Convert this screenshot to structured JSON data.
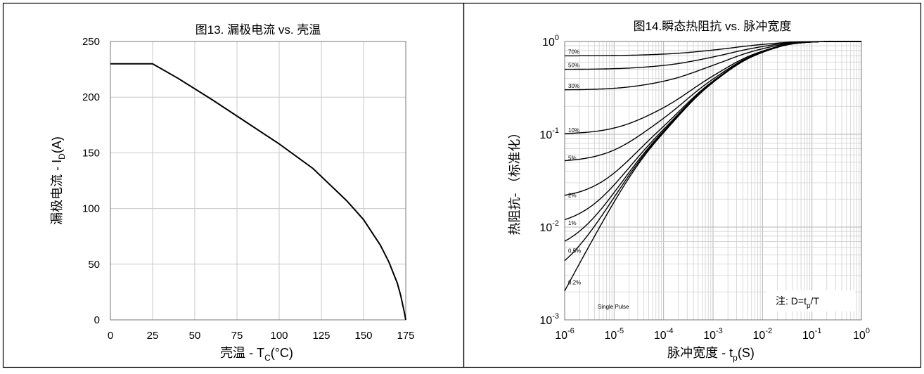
{
  "charts": [
    {
      "title": "图13. 漏极电流 vs. 壳温",
      "ylabel_main": "漏极电流 - I",
      "ylabel_sub": "D",
      "ylabel_unit": "(A)",
      "xlabel_main": "壳温  - T",
      "xlabel_sub": "C",
      "xlabel_unit": "(°C)"
    },
    {
      "title": "图14.瞬态热阻抗 vs. 脉冲宽度",
      "ylabel": "热阻抗- （标准化）",
      "xlabel_main": "脉冲宽度 - t",
      "xlabel_sub": "p",
      "xlabel_unit": "(S)",
      "note_prefix": "注:  D=t",
      "note_sub": "p",
      "note_suffix": "/T",
      "pulse_label": "Single Pulse"
    }
  ],
  "chart_data": [
    {
      "type": "line",
      "title": "图13. 漏极电流 vs. 壳温",
      "xlabel": "壳温  - TC(°C)",
      "ylabel": "漏极电流 - ID(A)",
      "xlim": [
        0,
        175
      ],
      "ylim": [
        0,
        250
      ],
      "xticks": [
        0,
        25,
        50,
        75,
        100,
        125,
        150,
        175
      ],
      "yticks": [
        0,
        50,
        100,
        150,
        200,
        250
      ],
      "grid": true,
      "series": [
        {
          "x": [
            0,
            25,
            40,
            60,
            80,
            100,
            120,
            140,
            150,
            160,
            165,
            170,
            172,
            174,
            175
          ],
          "y": [
            230,
            230,
            217,
            198,
            178,
            158,
            136,
            107,
            90,
            67,
            52,
            33,
            22,
            8,
            0
          ]
        }
      ]
    },
    {
      "type": "line",
      "title": "图14.瞬态热阻抗 vs. 脉冲宽度",
      "xlabel": "脉冲宽度 - tp(S)",
      "ylabel": "热阻抗- （标准化）",
      "x_scale": "log",
      "y_scale": "log",
      "xlim": [
        1e-06,
        1
      ],
      "ylim": [
        0.001,
        1
      ],
      "xtick_labels": [
        {
          "base": "10",
          "exp": "-6"
        },
        {
          "base": "10",
          "exp": "-5"
        },
        {
          "base": "10",
          "exp": "-4"
        },
        {
          "base": "10",
          "exp": "-3"
        },
        {
          "base": "10",
          "exp": "-2"
        },
        {
          "base": "10",
          "exp": "-1"
        },
        {
          "base": "10",
          "exp": "0"
        }
      ],
      "ytick_labels": [
        {
          "base": "10",
          "exp": "0"
        },
        {
          "base": "10",
          "exp": "-1"
        },
        {
          "base": "10",
          "exp": "-2"
        },
        {
          "base": "10",
          "exp": "-3"
        }
      ],
      "grid": true,
      "series": [
        {
          "name": "70%",
          "d": 0.7
        },
        {
          "name": "50%",
          "d": 0.5
        },
        {
          "name": "30%",
          "d": 0.3
        },
        {
          "name": "10%",
          "d": 0.1
        },
        {
          "name": "5%",
          "d": 0.05
        },
        {
          "name": "2%",
          "d": 0.02
        },
        {
          "name": "1%",
          "d": 0.01
        },
        {
          "name": "0.5%",
          "d": 0.005
        },
        {
          "name": "0.2%",
          "d": 0.0023
        },
        {
          "name": "Single Pulse",
          "d": 0
        }
      ]
    }
  ]
}
